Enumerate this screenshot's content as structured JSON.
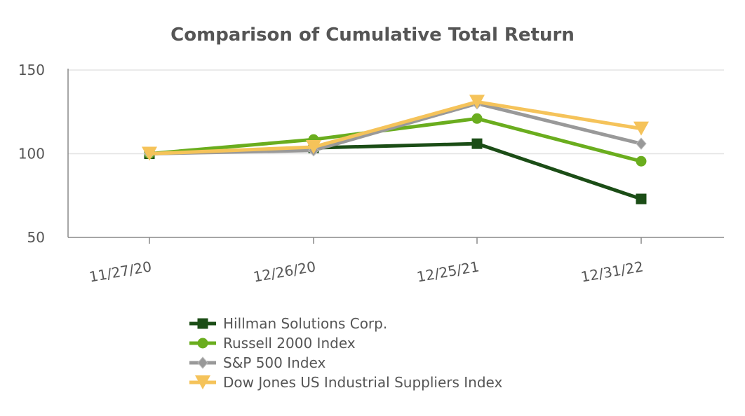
{
  "chart_data": {
    "type": "line",
    "title": "Comparison of Cumulative Total Return",
    "xlabel": "",
    "ylabel": "",
    "categories": [
      "11/27/20",
      "12/26/20",
      "12/25/21",
      "12/31/22"
    ],
    "ylim": [
      50,
      150
    ],
    "yticks": [
      "50",
      "100",
      "150"
    ],
    "ytick_values": [
      50,
      100,
      150
    ],
    "grid": true,
    "legend_position": "bottom",
    "series": [
      {
        "name": "Hillman Solutions Corp.",
        "values": [
          100,
          103.5,
          106,
          73
        ],
        "color": "#1b4d16",
        "marker": "square"
      },
      {
        "name": "Russell 2000 Index",
        "values": [
          100,
          108.5,
          121,
          95.5
        ],
        "color": "#6aad1e",
        "marker": "circle"
      },
      {
        "name": "S&P 500 Index",
        "values": [
          100,
          102,
          130,
          106
        ],
        "color": "#999999",
        "marker": "diamond"
      },
      {
        "name": "Dow Jones US Industrial Suppliers Index",
        "values": [
          100,
          104,
          131,
          115
        ],
        "color": "#f5c35a",
        "marker": "triangle-down"
      }
    ]
  }
}
